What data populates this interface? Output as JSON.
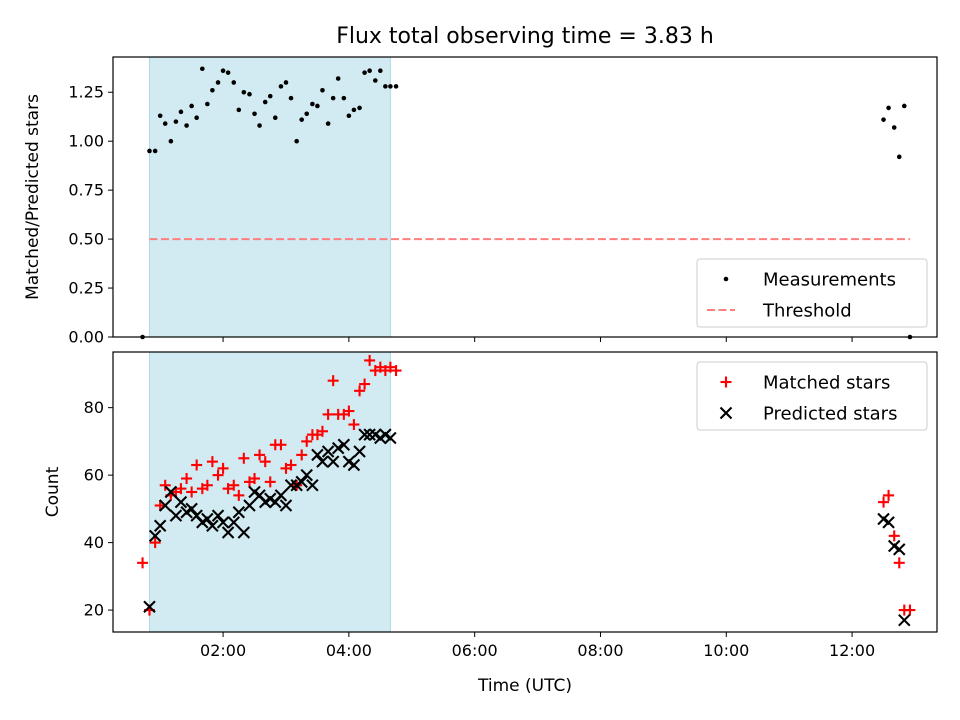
{
  "figure": {
    "title": "Flux total observing time = 3.83 h",
    "x_axis_label": "Time (UTC)"
  },
  "colors": {
    "observing_span": "#add8e6",
    "threshold": "#ff7f7f",
    "measurement": "#000000",
    "matched": "#ff0000",
    "predicted": "#000000"
  },
  "chart_data": [
    {
      "type": "scatter",
      "panel": "top",
      "title": "Flux total observing time = 3.83 h",
      "xlabel": "",
      "ylabel": "Matched/Predicted stars",
      "xlim_hours": [
        0.25,
        13.35
      ],
      "ylim": [
        0,
        1.43
      ],
      "x_tick_labels": [
        "02:00",
        "04:00",
        "06:00",
        "08:00",
        "10:00",
        "12:00"
      ],
      "y_ticks": [
        0.0,
        0.25,
        0.5,
        0.75,
        1.0,
        1.25
      ],
      "y_tick_labels": [
        "0.00",
        "0.25",
        "0.50",
        "0.75",
        "1.00",
        "1.25"
      ],
      "grid": false,
      "legend_position": "lower right",
      "shaded_span_hours": [
        0.83,
        4.66
      ],
      "series": [
        {
          "name": "Measurements",
          "kind": "scatter",
          "marker": "dot",
          "x_hours": [
            0.72,
            0.83,
            0.92,
            1.0,
            1.08,
            1.17,
            1.25,
            1.33,
            1.42,
            1.5,
            1.58,
            1.67,
            1.75,
            1.83,
            1.92,
            2.0,
            2.08,
            2.17,
            2.25,
            2.33,
            2.42,
            2.5,
            2.58,
            2.67,
            2.75,
            2.83,
            2.92,
            3.0,
            3.08,
            3.17,
            3.25,
            3.33,
            3.42,
            3.5,
            3.58,
            3.67,
            3.75,
            3.83,
            3.92,
            4.0,
            4.08,
            4.17,
            4.25,
            4.33,
            4.42,
            4.5,
            4.58,
            4.66,
            4.75,
            12.5,
            12.58,
            12.67,
            12.75,
            12.83,
            12.92
          ],
          "y": [
            0.0,
            0.95,
            0.95,
            1.13,
            1.09,
            1.0,
            1.1,
            1.15,
            1.08,
            1.18,
            1.12,
            1.37,
            1.19,
            1.26,
            1.3,
            1.36,
            1.35,
            1.3,
            1.16,
            1.25,
            1.24,
            1.14,
            1.08,
            1.2,
            1.23,
            1.12,
            1.28,
            1.3,
            1.22,
            1.0,
            1.11,
            1.14,
            1.19,
            1.18,
            1.26,
            1.09,
            1.22,
            1.32,
            1.22,
            1.13,
            1.16,
            1.17,
            1.35,
            1.36,
            1.31,
            1.36,
            1.28,
            1.28,
            1.28,
            1.11,
            1.17,
            1.07,
            0.92,
            1.18,
            0.0
          ]
        },
        {
          "name": "Threshold",
          "kind": "dashed-line",
          "x_hours": [
            0.83,
            12.92
          ],
          "y": [
            0.5,
            0.5
          ]
        }
      ]
    },
    {
      "type": "scatter",
      "panel": "bottom",
      "xlabel": "Time (UTC)",
      "ylabel": "Count",
      "xlim_hours": [
        0.25,
        13.35
      ],
      "ylim": [
        13.5,
        96.5
      ],
      "x_tick_labels": [
        "02:00",
        "04:00",
        "06:00",
        "08:00",
        "10:00",
        "12:00"
      ],
      "y_ticks": [
        20,
        40,
        60,
        80
      ],
      "y_tick_labels": [
        "20",
        "40",
        "60",
        "80"
      ],
      "grid": false,
      "legend_position": "upper right",
      "shaded_span_hours": [
        0.83,
        4.66
      ],
      "series": [
        {
          "name": "Matched stars",
          "marker": "plus",
          "x_hours": [
            0.72,
            0.83,
            0.92,
            1.0,
            1.08,
            1.17,
            1.25,
            1.33,
            1.42,
            1.5,
            1.58,
            1.67,
            1.75,
            1.83,
            1.92,
            2.0,
            2.08,
            2.17,
            2.25,
            2.33,
            2.42,
            2.5,
            2.58,
            2.67,
            2.75,
            2.83,
            2.92,
            3.0,
            3.08,
            3.17,
            3.25,
            3.33,
            3.42,
            3.5,
            3.58,
            3.67,
            3.75,
            3.83,
            3.92,
            4.0,
            4.08,
            4.17,
            4.25,
            4.33,
            4.42,
            4.5,
            4.58,
            4.66,
            4.75,
            12.5,
            12.58,
            12.67,
            12.75,
            12.83,
            12.92
          ],
          "y": [
            34,
            20,
            40,
            51,
            57,
            54,
            55,
            56,
            59,
            55,
            63,
            56,
            57,
            64,
            60,
            62,
            56,
            57,
            54,
            65,
            58,
            59,
            66,
            64,
            58,
            69,
            69,
            62,
            63,
            57,
            66,
            70,
            72,
            72,
            73,
            78,
            88,
            78,
            78,
            79,
            75,
            85,
            87,
            94,
            91,
            92,
            91,
            92,
            91,
            52,
            54,
            42,
            34,
            20,
            20
          ]
        },
        {
          "name": "Predicted stars",
          "marker": "x",
          "x_hours": [
            0.83,
            0.92,
            1.0,
            1.08,
            1.17,
            1.25,
            1.33,
            1.42,
            1.5,
            1.58,
            1.67,
            1.75,
            1.83,
            1.92,
            2.0,
            2.08,
            2.17,
            2.25,
            2.33,
            2.42,
            2.5,
            2.58,
            2.67,
            2.75,
            2.83,
            2.92,
            3.0,
            3.08,
            3.17,
            3.25,
            3.33,
            3.42,
            3.5,
            3.58,
            3.67,
            3.75,
            3.83,
            3.92,
            4.0,
            4.08,
            4.17,
            4.25,
            4.33,
            4.42,
            4.5,
            4.58,
            4.66,
            12.5,
            12.58,
            12.67,
            12.75,
            12.83
          ],
          "y": [
            21,
            42,
            45,
            51,
            55,
            48,
            52,
            49,
            50,
            48,
            46,
            47,
            45,
            48,
            46,
            43,
            46,
            49,
            43,
            51,
            55,
            54,
            52,
            53,
            52,
            54,
            51,
            57,
            57,
            58,
            60,
            57,
            66,
            64,
            67,
            64,
            68,
            69,
            64,
            63,
            67,
            72,
            72,
            72,
            71,
            72,
            71,
            47,
            46,
            39,
            38,
            17
          ]
        }
      ]
    }
  ]
}
